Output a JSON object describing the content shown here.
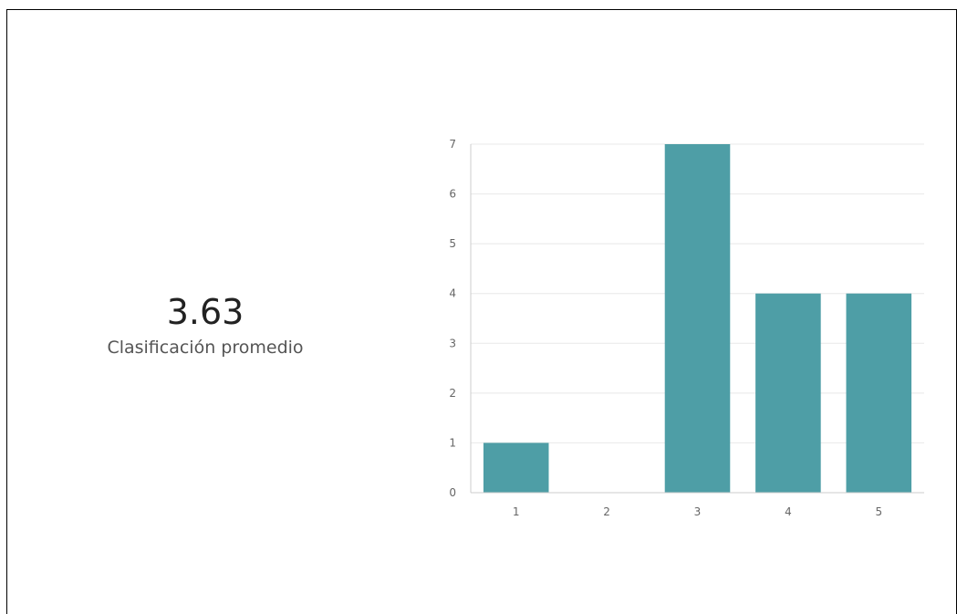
{
  "summary": {
    "average": "3.63",
    "label": "Clasificación promedio"
  },
  "chart_data": {
    "type": "bar",
    "categories": [
      "1",
      "2",
      "3",
      "4",
      "5"
    ],
    "values": [
      1,
      0,
      7,
      4,
      4
    ],
    "y_ticks": [
      "0",
      "1",
      "2",
      "3",
      "4",
      "5",
      "6",
      "7"
    ],
    "ylim": [
      0,
      7
    ],
    "grid": true,
    "bar_color": "#4e9ea6",
    "grid_color": "#e8e8e8"
  }
}
